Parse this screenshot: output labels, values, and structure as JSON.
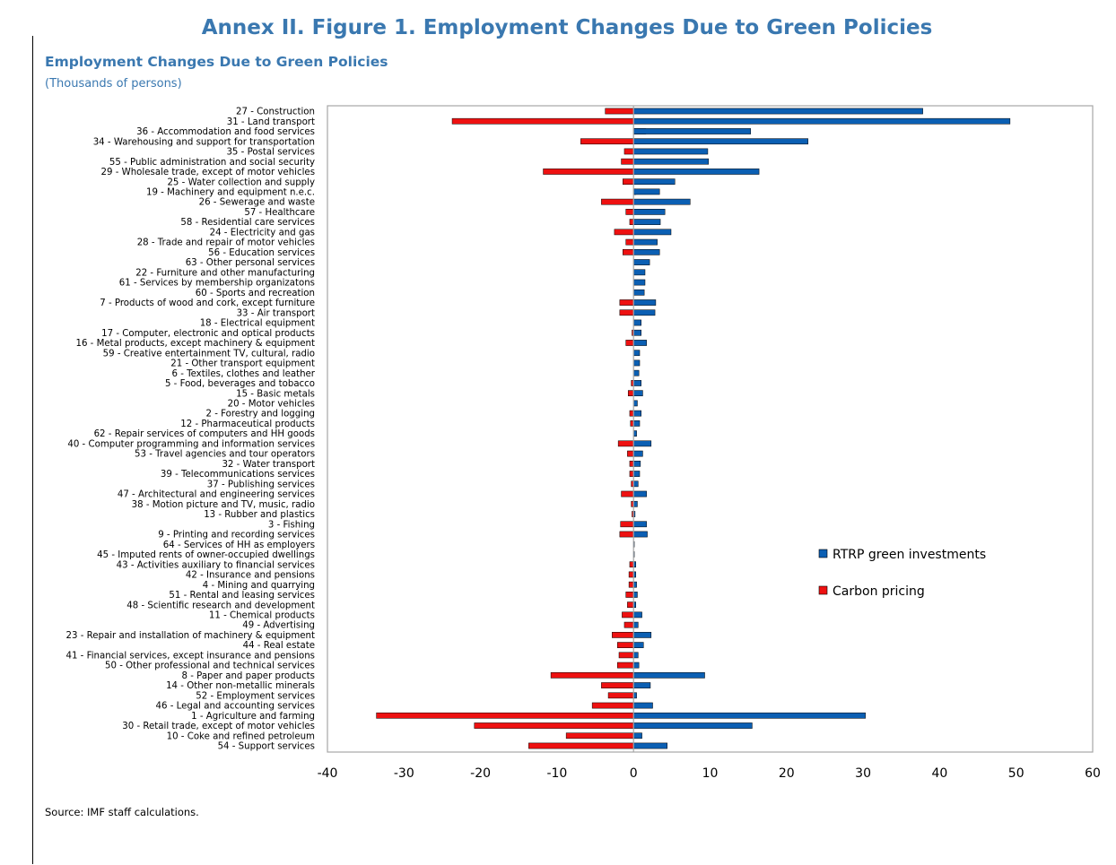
{
  "figure": {
    "heading": "Annex II. Figure 1. Employment Changes Due to Green Policies",
    "source_note": "Source: IMF staff calculations."
  },
  "colors": {
    "title": "#3a78b0",
    "rtrp": "#0b5fb3",
    "carbon": "#ee1111"
  },
  "chart_data": {
    "type": "bar",
    "orientation": "horizontal",
    "title": "Employment Changes Due to Green Policies",
    "subtitle": "(Thousands of persons)",
    "xlim": [
      -40,
      60
    ],
    "x_ticks": [
      "-40",
      "-30",
      "-20",
      "-10",
      "0",
      "10",
      "20",
      "30",
      "40",
      "50",
      "60"
    ],
    "grid": false,
    "legend_position": "lower-right",
    "categories": [
      "27 - Construction",
      "31 - Land transport",
      "36 - Accommodation and food services",
      "34 - Warehousing and support for transportation",
      "35 - Postal services",
      "55 - Public administration and social security",
      "29 - Wholesale trade, except of motor vehicles",
      "25 - Water collection and supply",
      "19 - Machinery and equipment n.e.c.",
      "26 - Sewerage and waste",
      "57 - Healthcare",
      "58 - Residential care services",
      "24 - Electricity and gas",
      "28 - Trade and repair of motor vehicles",
      "56 - Education services",
      "63 - Other personal services",
      "22 - Furniture and other manufacturing",
      "61 - Services by membership organizatons",
      "60 - Sports and recreation",
      "7 - Products of wood and cork, except furniture",
      "33 - Air transport",
      "18 - Electrical equipment",
      "17 - Computer, electronic and optical products",
      "16 - Metal products, except machinery & equipment",
      "59 - Creative entertainment TV, cultural, radio",
      "21 - Other transport equipment",
      "6 - Textiles, clothes and leather",
      "5 - Food, beverages and tobacco",
      "15 - Basic metals",
      "20 - Motor vehicles",
      "2 - Forestry and logging",
      "12 - Pharmaceutical products",
      "62 - Repair services of computers and HH goods",
      "40 - Computer programming and information services",
      "53 - Travel agencies and tour operators",
      "32 - Water transport",
      "39 - Telecommunications services",
      "37 - Publishing services",
      "47 - Architectural and engineering services",
      "38 - Motion picture and TV, music, radio",
      "13 - Rubber and plastics",
      "3 - Fishing",
      "9 - Printing and recording services",
      "64 - Services of HH as employers",
      "45 - Imputed rents of owner-occupied dwellings",
      "43 - Activities auxiliary to financial services",
      "42 - Insurance and pensions",
      "4 - Mining and quarrying",
      "51 - Rental and leasing services",
      "48 - Scientific research and development",
      "11 - Chemical products",
      "49 - Advertising",
      "23 - Repair and installation of machinery & equipment",
      "44 - Real estate",
      "41 - Financial services, except insurance and pensions",
      "50 - Other professional and technical services",
      "8 - Paper and paper products",
      "14 - Other non-metallic minerals",
      "52 - Employment services",
      "46 - Legal and accounting services",
      "1 - Agriculture and farming",
      "30 - Retail trade, except of motor vehicles",
      "10 - Coke and refined petroleum",
      "54 - Support services"
    ],
    "series": [
      {
        "name": "RTRP green investments",
        "values": [
          37.8,
          49.2,
          15.3,
          22.8,
          9.7,
          9.8,
          16.4,
          5.4,
          3.4,
          7.4,
          4.1,
          3.5,
          4.9,
          3.1,
          3.4,
          2.1,
          1.5,
          1.5,
          1.4,
          2.9,
          2.8,
          1.0,
          1.0,
          1.7,
          0.8,
          0.8,
          0.7,
          1.0,
          1.2,
          0.5,
          1.0,
          0.8,
          0.4,
          2.3,
          1.2,
          0.9,
          0.8,
          0.6,
          1.7,
          0.5,
          0.2,
          1.7,
          1.8,
          0.1,
          0.1,
          0.3,
          0.3,
          0.4,
          0.5,
          0.3,
          1.1,
          0.6,
          2.3,
          1.3,
          0.6,
          0.7,
          9.3,
          2.2,
          0.4,
          2.5,
          30.3,
          15.5,
          1.1,
          4.4
        ]
      },
      {
        "name": "Carbon pricing",
        "values": [
          -3.7,
          -23.7,
          1.6,
          -6.9,
          -1.2,
          -1.6,
          -11.8,
          -1.4,
          0.3,
          -4.2,
          -1.0,
          -0.5,
          -2.5,
          -1.0,
          -1.4,
          0.0,
          0.0,
          0.0,
          0.0,
          -1.8,
          -1.8,
          0.0,
          -0.2,
          -1.0,
          0.0,
          0.0,
          0.0,
          -0.3,
          -0.7,
          0.0,
          -0.5,
          -0.4,
          0.0,
          -2.0,
          -0.8,
          -0.5,
          -0.5,
          -0.3,
          -1.6,
          -0.3,
          -0.2,
          -1.7,
          -1.8,
          0.0,
          0.0,
          -0.5,
          -0.6,
          -0.6,
          -1.0,
          -0.8,
          -1.5,
          -1.2,
          -2.8,
          -2.1,
          -1.9,
          -2.1,
          -10.8,
          -4.2,
          -3.3,
          -5.4,
          -33.6,
          -20.8,
          -8.8,
          -13.7
        ]
      }
    ]
  }
}
